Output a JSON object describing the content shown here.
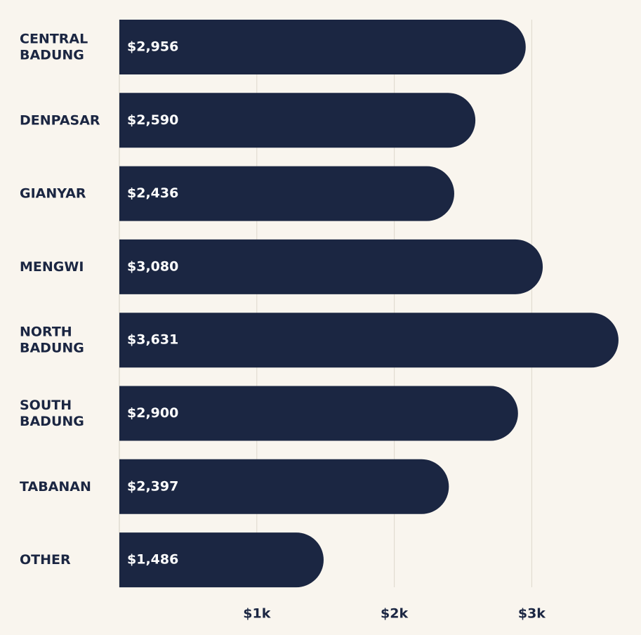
{
  "chart_data": {
    "type": "bar",
    "orientation": "horizontal",
    "title": "",
    "xlabel": "",
    "ylabel": "",
    "categories": [
      [
        "CENTRAL",
        "BADUNG"
      ],
      [
        "DENPASAR"
      ],
      [
        "GIANYAR"
      ],
      [
        "MENGWI"
      ],
      [
        "NORTH",
        "BADUNG"
      ],
      [
        "SOUTH",
        "BADUNG"
      ],
      [
        "TABANAN"
      ],
      [
        "OTHER"
      ]
    ],
    "values": [
      2956,
      2590,
      2436,
      3080,
      3631,
      2900,
      2397,
      1486
    ],
    "value_labels": [
      "$2,956",
      "$2,590",
      "$2,436",
      "$3,080",
      "$3,631",
      "$2,900",
      "$2,397",
      "$1,486"
    ],
    "xlim": [
      0,
      3700
    ],
    "ticks": [
      {
        "value": 1000,
        "label": "$1k"
      },
      {
        "value": 2000,
        "label": "$2k"
      },
      {
        "value": 3000,
        "label": "$3k"
      }
    ],
    "grid": true,
    "bar_color": "#1b2642",
    "background_color": "#f9f5ee",
    "category_color": "#1b2642",
    "value_label_color": "#ffffff"
  }
}
